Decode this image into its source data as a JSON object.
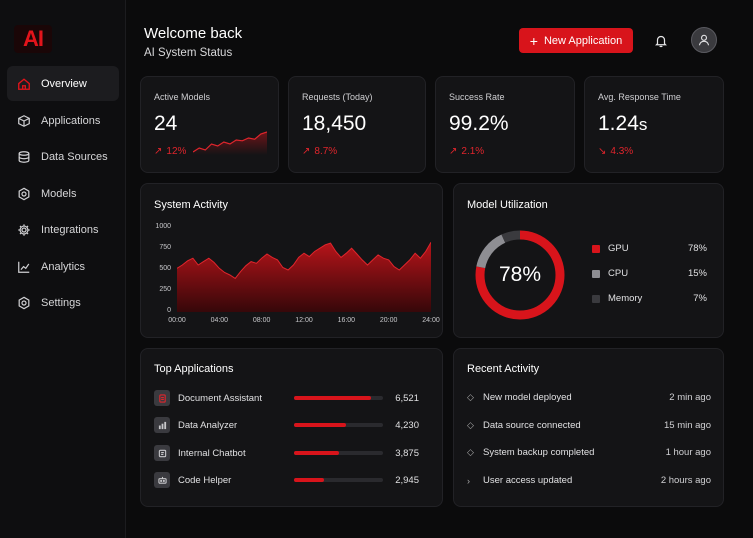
{
  "logo": "AI",
  "nav": [
    {
      "label": "Overview",
      "icon": "home-icon",
      "active": true
    },
    {
      "label": "Applications",
      "icon": "box-icon",
      "active": false
    },
    {
      "label": "Data Sources",
      "icon": "database-icon",
      "active": false
    },
    {
      "label": "Models",
      "icon": "hexagon-icon",
      "active": false
    },
    {
      "label": "Integrations",
      "icon": "gear-icon",
      "active": false
    },
    {
      "label": "Analytics",
      "icon": "chart-icon",
      "active": false
    },
    {
      "label": "Settings",
      "icon": "gear-icon",
      "active": false
    }
  ],
  "header": {
    "title": "Welcome back",
    "subtitle": "AI System Status",
    "new_app_label": "New Application"
  },
  "stats": [
    {
      "label": "Active Models",
      "value": "24",
      "unit": "",
      "change": "12%",
      "direction": "up",
      "sparkline": [
        4,
        5,
        4.5,
        6,
        5.5,
        6.5,
        6,
        7,
        6.8,
        7.5,
        7.2,
        8.5,
        9
      ]
    },
    {
      "label": "Requests (Today)",
      "value": "18,450",
      "unit": "",
      "change": "8.7%",
      "direction": "up"
    },
    {
      "label": "Success Rate",
      "value": "99.2%",
      "unit": "",
      "change": "2.1%",
      "direction": "up"
    },
    {
      "label": "Avg. Response Time",
      "value": "1.24",
      "unit": "s",
      "change": "4.3%",
      "direction": "down"
    }
  ],
  "system_activity": {
    "title": "System Activity",
    "chart_data": {
      "type": "area",
      "title": "System Activity",
      "ylim": [
        0,
        1000
      ],
      "y_ticks": [
        "1000",
        "750",
        "500",
        "250",
        "0"
      ],
      "x_ticks": [
        "00:00",
        "04:00",
        "08:00",
        "12:00",
        "16:00",
        "20:00",
        "24:00"
      ],
      "xlim": [
        0,
        24
      ],
      "x": [
        0,
        0.5,
        1,
        1.5,
        2,
        2.5,
        3,
        3.5,
        4,
        4.5,
        5,
        5.5,
        6,
        6.5,
        7,
        7.5,
        8,
        8.5,
        9,
        9.5,
        10,
        10.5,
        11,
        11.5,
        12,
        12.5,
        13,
        13.5,
        14,
        14.5,
        15,
        15.5,
        16,
        16.5,
        17,
        17.5,
        18,
        18.5,
        19,
        19.5,
        20,
        20.5,
        21,
        21.5,
        22,
        22.5,
        23,
        23.5,
        24
      ],
      "values": [
        520,
        560,
        610,
        640,
        560,
        600,
        640,
        590,
        520,
        470,
        440,
        400,
        480,
        550,
        600,
        580,
        640,
        690,
        650,
        620,
        530,
        500,
        560,
        650,
        700,
        660,
        720,
        760,
        800,
        820,
        720,
        650,
        700,
        760,
        690,
        620,
        560,
        620,
        680,
        640,
        620,
        540,
        500,
        560,
        620,
        700,
        640,
        720,
        830
      ],
      "color": "#d8141b",
      "grid": false
    }
  },
  "model_utilization": {
    "title": "Model Utilization",
    "center_label": "78%",
    "chart_data": {
      "type": "pie",
      "labels": [
        "GPU",
        "CPU",
        "Memory"
      ],
      "values": [
        78,
        15,
        7
      ],
      "display": [
        "78%",
        "15%",
        "7%"
      ],
      "colors": [
        "#d8141b",
        "#8e8e93",
        "#3a3a3e"
      ],
      "legend": "right"
    }
  },
  "top_apps": {
    "title": "Top Applications",
    "items": [
      {
        "name": "Document Assistant",
        "value": "6,521",
        "share": 0.87,
        "icon": "document-icon",
        "icon_color": "#d8141b"
      },
      {
        "name": "Data Analyzer",
        "value": "4,230",
        "share": 0.58,
        "icon": "chart-icon",
        "icon_color": "#bbbbbf"
      },
      {
        "name": "Internal Chatbot",
        "value": "3,875",
        "share": 0.5,
        "icon": "chat-icon",
        "icon_color": "#bbbbbf"
      },
      {
        "name": "Code Helper",
        "value": "2,945",
        "share": 0.34,
        "icon": "code-icon",
        "icon_color": "#bbbbbf"
      }
    ]
  },
  "recent_activity": {
    "title": "Recent Activity",
    "items": [
      {
        "text": "New model deployed",
        "time": "2 min ago",
        "icon": "diamond-icon"
      },
      {
        "text": "Data source connected",
        "time": "15 min ago",
        "icon": "diamond-icon"
      },
      {
        "text": "System backup completed",
        "time": "1 hour ago",
        "icon": "diamond-icon"
      },
      {
        "text": "User access updated",
        "time": "2 hours ago",
        "icon": "chevron-right-icon"
      }
    ]
  },
  "colors": {
    "accent": "#d8141b",
    "background": "#0b0b0c",
    "card": "#141416"
  }
}
